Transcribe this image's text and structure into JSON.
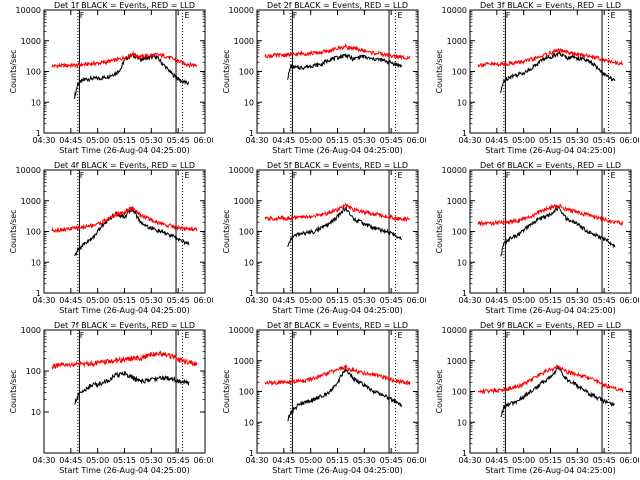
{
  "colors": {
    "events": "#000000",
    "lld": "#ff0000",
    "axis": "#000000",
    "background": "#ffffff"
  },
  "chart_data": [
    {
      "type": "line",
      "title": "Det 1f BLACK = Events, RED = LLD",
      "xlabel": "Start Time (26-Aug-04 04:25:00)",
      "ylabel": "Counts/sec",
      "yscale": "log",
      "ylim": [
        1,
        10000
      ],
      "xlim": [
        0,
        100
      ],
      "xtick_labels": [
        "04:30",
        "04:45",
        "05:00",
        "05:15",
        "05:30",
        "05:45",
        "06:00"
      ],
      "ytick_labels": [
        "1",
        "10",
        "100",
        "1000",
        "10000"
      ],
      "corner_marks": [
        "F",
        "E"
      ],
      "vlines": {
        "solid": [
          22,
          82
        ],
        "dotted": [
          21,
          86
        ]
      },
      "series": [
        {
          "name": "Events",
          "color": "#000000",
          "x": [
            19,
            21,
            25,
            30,
            35,
            40,
            45,
            48,
            50,
            55,
            60,
            65,
            70,
            75,
            80,
            85,
            90
          ],
          "values": [
            15,
            40,
            55,
            60,
            60,
            70,
            90,
            130,
            250,
            350,
            250,
            280,
            300,
            150,
            80,
            50,
            40
          ]
        },
        {
          "name": "LLD",
          "color": "#ff0000",
          "x": [
            5,
            10,
            15,
            20,
            25,
            30,
            35,
            40,
            45,
            50,
            55,
            60,
            65,
            70,
            75,
            80,
            85,
            90,
            95
          ],
          "values": [
            150,
            155,
            158,
            160,
            170,
            180,
            190,
            210,
            240,
            280,
            380,
            300,
            330,
            350,
            320,
            260,
            200,
            170,
            160
          ]
        }
      ]
    },
    {
      "type": "line",
      "title": "Det 2f BLACK = Events, RED = LLD",
      "xlabel": "Start Time (26-Aug-04 04:25:00)",
      "ylabel": "Counts/sec",
      "yscale": "log",
      "ylim": [
        1,
        10000
      ],
      "xlim": [
        0,
        100
      ],
      "xtick_labels": [
        "04:30",
        "04:45",
        "05:00",
        "05:15",
        "05:30",
        "05:45",
        "06:00"
      ],
      "ytick_labels": [
        "1",
        "10",
        "100",
        "1000",
        "10000"
      ],
      "corner_marks": [
        "F",
        "E"
      ],
      "vlines": {
        "solid": [
          22,
          82
        ],
        "dotted": [
          21,
          86
        ]
      },
      "series": [
        {
          "name": "Events",
          "color": "#000000",
          "x": [
            19,
            21,
            25,
            30,
            35,
            40,
            45,
            50,
            55,
            60,
            65,
            70,
            75,
            80,
            85,
            90
          ],
          "values": [
            60,
            150,
            130,
            140,
            160,
            170,
            250,
            280,
            350,
            250,
            320,
            260,
            250,
            220,
            180,
            150
          ]
        },
        {
          "name": "LLD",
          "color": "#ff0000",
          "x": [
            5,
            10,
            15,
            20,
            25,
            30,
            35,
            40,
            45,
            50,
            55,
            60,
            65,
            70,
            75,
            80,
            85,
            90,
            95
          ],
          "values": [
            320,
            330,
            340,
            350,
            370,
            390,
            400,
            420,
            470,
            560,
            650,
            550,
            500,
            420,
            390,
            350,
            310,
            290,
            290
          ]
        }
      ]
    },
    {
      "type": "line",
      "title": "Det 3f BLACK = Events, RED = LLD",
      "xlabel": "Start Time (26-Aug-04 04:25:00)",
      "ylabel": "Counts/sec",
      "yscale": "log",
      "ylim": [
        1,
        10000
      ],
      "xlim": [
        0,
        100
      ],
      "xtick_labels": [
        "04:30",
        "04:45",
        "05:00",
        "05:15",
        "05:30",
        "05:45",
        "06:00"
      ],
      "ytick_labels": [
        "1",
        "10",
        "100",
        "1000",
        "10000"
      ],
      "corner_marks": [
        "F",
        "E"
      ],
      "vlines": {
        "solid": [
          22,
          82
        ],
        "dotted": [
          21,
          86
        ]
      },
      "series": [
        {
          "name": "Events",
          "color": "#000000",
          "x": [
            19,
            21,
            25,
            30,
            35,
            40,
            45,
            50,
            55,
            60,
            65,
            70,
            75,
            80,
            85,
            90
          ],
          "values": [
            20,
            50,
            70,
            80,
            100,
            150,
            250,
            300,
            400,
            280,
            300,
            250,
            200,
            120,
            70,
            50
          ]
        },
        {
          "name": "LLD",
          "color": "#ff0000",
          "x": [
            5,
            10,
            15,
            20,
            25,
            30,
            35,
            40,
            45,
            50,
            55,
            60,
            65,
            70,
            75,
            80,
            85,
            90,
            95
          ],
          "values": [
            165,
            170,
            172,
            175,
            185,
            200,
            220,
            260,
            320,
            400,
            500,
            420,
            380,
            340,
            320,
            280,
            220,
            190,
            180
          ]
        }
      ]
    },
    {
      "type": "line",
      "title": "Det 4f BLACK = Events, RED = LLD",
      "xlabel": "Start Time (26-Aug-04 04:25:00)",
      "ylabel": "Counts/sec",
      "yscale": "log",
      "ylim": [
        1,
        10000
      ],
      "xlim": [
        0,
        100
      ],
      "xtick_labels": [
        "04:30",
        "04:45",
        "05:00",
        "05:15",
        "05:30",
        "05:45",
        "06:00"
      ],
      "ytick_labels": [
        "1",
        "10",
        "100",
        "1000",
        "10000"
      ],
      "corner_marks": [
        "F",
        "E"
      ],
      "vlines": {
        "solid": [
          22,
          82
        ],
        "dotted": [
          21,
          86
        ]
      },
      "series": [
        {
          "name": "Events",
          "color": "#000000",
          "x": [
            19,
            21,
            25,
            30,
            35,
            40,
            45,
            50,
            55,
            60,
            65,
            70,
            75,
            80,
            85,
            90
          ],
          "values": [
            15,
            25,
            40,
            60,
            130,
            250,
            380,
            300,
            550,
            200,
            140,
            110,
            90,
            70,
            50,
            40
          ]
        },
        {
          "name": "LLD",
          "color": "#ff0000",
          "x": [
            5,
            10,
            15,
            20,
            25,
            30,
            35,
            40,
            45,
            50,
            55,
            60,
            65,
            70,
            75,
            80,
            85,
            90,
            95
          ],
          "values": [
            110,
            115,
            120,
            130,
            140,
            160,
            190,
            260,
            380,
            420,
            600,
            350,
            260,
            200,
            170,
            150,
            130,
            120,
            120
          ]
        }
      ]
    },
    {
      "type": "line",
      "title": "Det 5f BLACK = Events, RED = LLD",
      "xlabel": "Start Time (26-Aug-04 04:25:00)",
      "ylabel": "Counts/sec",
      "yscale": "log",
      "ylim": [
        1,
        10000
      ],
      "xlim": [
        0,
        100
      ],
      "xtick_labels": [
        "04:30",
        "04:45",
        "05:00",
        "05:15",
        "05:30",
        "05:45",
        "06:00"
      ],
      "ytick_labels": [
        "1",
        "10",
        "100",
        "1000",
        "10000"
      ],
      "corner_marks": [
        "F",
        "E"
      ],
      "vlines": {
        "solid": [
          22,
          82
        ],
        "dotted": [
          21,
          86
        ]
      },
      "series": [
        {
          "name": "Events",
          "color": "#000000",
          "x": [
            19,
            21,
            25,
            30,
            35,
            40,
            45,
            50,
            55,
            60,
            65,
            70,
            75,
            80,
            85,
            90
          ],
          "values": [
            30,
            60,
            80,
            90,
            100,
            130,
            180,
            300,
            600,
            250,
            200,
            150,
            120,
            100,
            80,
            60
          ]
        },
        {
          "name": "LLD",
          "color": "#ff0000",
          "x": [
            5,
            10,
            15,
            20,
            25,
            30,
            35,
            40,
            45,
            50,
            55,
            60,
            65,
            70,
            75,
            80,
            85,
            90,
            95
          ],
          "values": [
            260,
            265,
            270,
            275,
            285,
            300,
            320,
            350,
            420,
            520,
            700,
            500,
            450,
            400,
            360,
            320,
            280,
            260,
            250
          ]
        }
      ]
    },
    {
      "type": "line",
      "title": "Det 6f BLACK = Events, RED = LLD",
      "xlabel": "Start Time (26-Aug-04 04:25:00)",
      "ylabel": "Counts/sec",
      "yscale": "log",
      "ylim": [
        1,
        10000
      ],
      "xlim": [
        0,
        100
      ],
      "xtick_labels": [
        "04:30",
        "04:45",
        "05:00",
        "05:15",
        "05:30",
        "05:45",
        "06:00"
      ],
      "ytick_labels": [
        "1",
        "10",
        "100",
        "1000",
        "10000"
      ],
      "corner_marks": [
        "F",
        "E"
      ],
      "vlines": {
        "solid": [
          22,
          82
        ],
        "dotted": [
          21,
          86
        ]
      },
      "series": [
        {
          "name": "Events",
          "color": "#000000",
          "x": [
            19,
            21,
            25,
            30,
            35,
            40,
            45,
            50,
            55,
            60,
            65,
            70,
            75,
            80,
            85,
            90
          ],
          "values": [
            15,
            40,
            60,
            80,
            130,
            200,
            300,
            350,
            600,
            250,
            200,
            130,
            90,
            70,
            50,
            35
          ]
        },
        {
          "name": "LLD",
          "color": "#ff0000",
          "x": [
            5,
            10,
            15,
            20,
            25,
            30,
            35,
            40,
            45,
            50,
            55,
            60,
            65,
            70,
            75,
            80,
            85,
            90,
            95
          ],
          "values": [
            180,
            185,
            190,
            200,
            210,
            230,
            270,
            350,
            480,
            600,
            700,
            520,
            450,
            380,
            330,
            280,
            230,
            200,
            190
          ]
        }
      ]
    },
    {
      "type": "line",
      "title": "Det 7f BLACK = Events, RED = LLD",
      "xlabel": "Start Time (26-Aug-04 04:25:00)",
      "ylabel": "Counts/sec",
      "yscale": "log",
      "ylim": [
        1,
        1000
      ],
      "xlim": [
        0,
        100
      ],
      "xtick_labels": [
        "04:30",
        "04:45",
        "05:00",
        "05:15",
        "05:30",
        "05:45",
        "06:00"
      ],
      "ytick_labels": [
        "10",
        "100",
        "1000"
      ],
      "corner_marks": [
        "F",
        "E"
      ],
      "vlines": {
        "solid": [
          22,
          82
        ],
        "dotted": [
          21,
          86
        ]
      },
      "series": [
        {
          "name": "Events",
          "color": "#000000",
          "x": [
            19,
            21,
            25,
            30,
            35,
            40,
            45,
            50,
            55,
            60,
            65,
            70,
            75,
            80,
            85,
            90
          ],
          "values": [
            15,
            25,
            35,
            45,
            50,
            60,
            80,
            90,
            70,
            55,
            60,
            65,
            70,
            65,
            55,
            50
          ]
        },
        {
          "name": "LLD",
          "color": "#ff0000",
          "x": [
            5,
            10,
            15,
            20,
            25,
            30,
            35,
            40,
            45,
            50,
            55,
            60,
            65,
            70,
            75,
            80,
            85,
            90,
            95
          ],
          "values": [
            130,
            135,
            140,
            145,
            150,
            155,
            160,
            170,
            180,
            190,
            200,
            210,
            240,
            270,
            260,
            220,
            180,
            160,
            150
          ]
        }
      ]
    },
    {
      "type": "line",
      "title": "Det 8f BLACK = Events, RED = LLD",
      "xlabel": "Start Time (26-Aug-04 04:25:00)",
      "ylabel": "Counts/sec",
      "yscale": "log",
      "ylim": [
        1,
        10000
      ],
      "xlim": [
        0,
        100
      ],
      "xtick_labels": [
        "04:30",
        "04:45",
        "05:00",
        "05:15",
        "05:30",
        "05:45",
        "06:00"
      ],
      "ytick_labels": [
        "1",
        "10",
        "100",
        "1000",
        "10000"
      ],
      "corner_marks": [
        "F",
        "E"
      ],
      "vlines": {
        "solid": [
          22,
          82
        ],
        "dotted": [
          21,
          86
        ]
      },
      "series": [
        {
          "name": "Events",
          "color": "#000000",
          "x": [
            19,
            21,
            25,
            30,
            35,
            40,
            45,
            50,
            55,
            60,
            65,
            70,
            75,
            80,
            85,
            90
          ],
          "values": [
            12,
            20,
            35,
            45,
            55,
            70,
            100,
            200,
            550,
            250,
            180,
            120,
            90,
            70,
            50,
            35
          ]
        },
        {
          "name": "LLD",
          "color": "#ff0000",
          "x": [
            5,
            10,
            15,
            20,
            25,
            30,
            35,
            40,
            45,
            50,
            55,
            60,
            65,
            70,
            75,
            80,
            85,
            90,
            95
          ],
          "values": [
            190,
            195,
            200,
            205,
            215,
            230,
            260,
            320,
            420,
            520,
            620,
            480,
            420,
            370,
            330,
            280,
            230,
            200,
            190
          ]
        }
      ]
    },
    {
      "type": "line",
      "title": "Det 9f BLACK = Events, RED = LLD",
      "xlabel": "Start Time (26-Aug-04 04:25:00)",
      "ylabel": "Counts/sec",
      "yscale": "log",
      "ylim": [
        1,
        10000
      ],
      "xlim": [
        0,
        100
      ],
      "xtick_labels": [
        "04:30",
        "04:45",
        "05:00",
        "05:15",
        "05:30",
        "05:45",
        "06:00"
      ],
      "ytick_labels": [
        "1",
        "10",
        "100",
        "1000",
        "10000"
      ],
      "corner_marks": [
        "F",
        "E"
      ],
      "vlines": {
        "solid": [
          22,
          82
        ],
        "dotted": [
          21,
          86
        ]
      },
      "series": [
        {
          "name": "Events",
          "color": "#000000",
          "x": [
            19,
            21,
            25,
            30,
            35,
            40,
            45,
            50,
            55,
            60,
            65,
            70,
            75,
            80,
            85,
            90
          ],
          "values": [
            15,
            30,
            40,
            50,
            80,
            120,
            200,
            300,
            600,
            250,
            180,
            120,
            80,
            60,
            45,
            35
          ]
        },
        {
          "name": "LLD",
          "color": "#ff0000",
          "x": [
            5,
            10,
            15,
            20,
            25,
            30,
            35,
            40,
            45,
            50,
            55,
            60,
            65,
            70,
            75,
            80,
            85,
            90,
            95
          ],
          "values": [
            100,
            105,
            110,
            115,
            130,
            150,
            190,
            280,
            400,
            520,
            650,
            450,
            380,
            320,
            260,
            200,
            150,
            120,
            110
          ]
        }
      ]
    }
  ]
}
